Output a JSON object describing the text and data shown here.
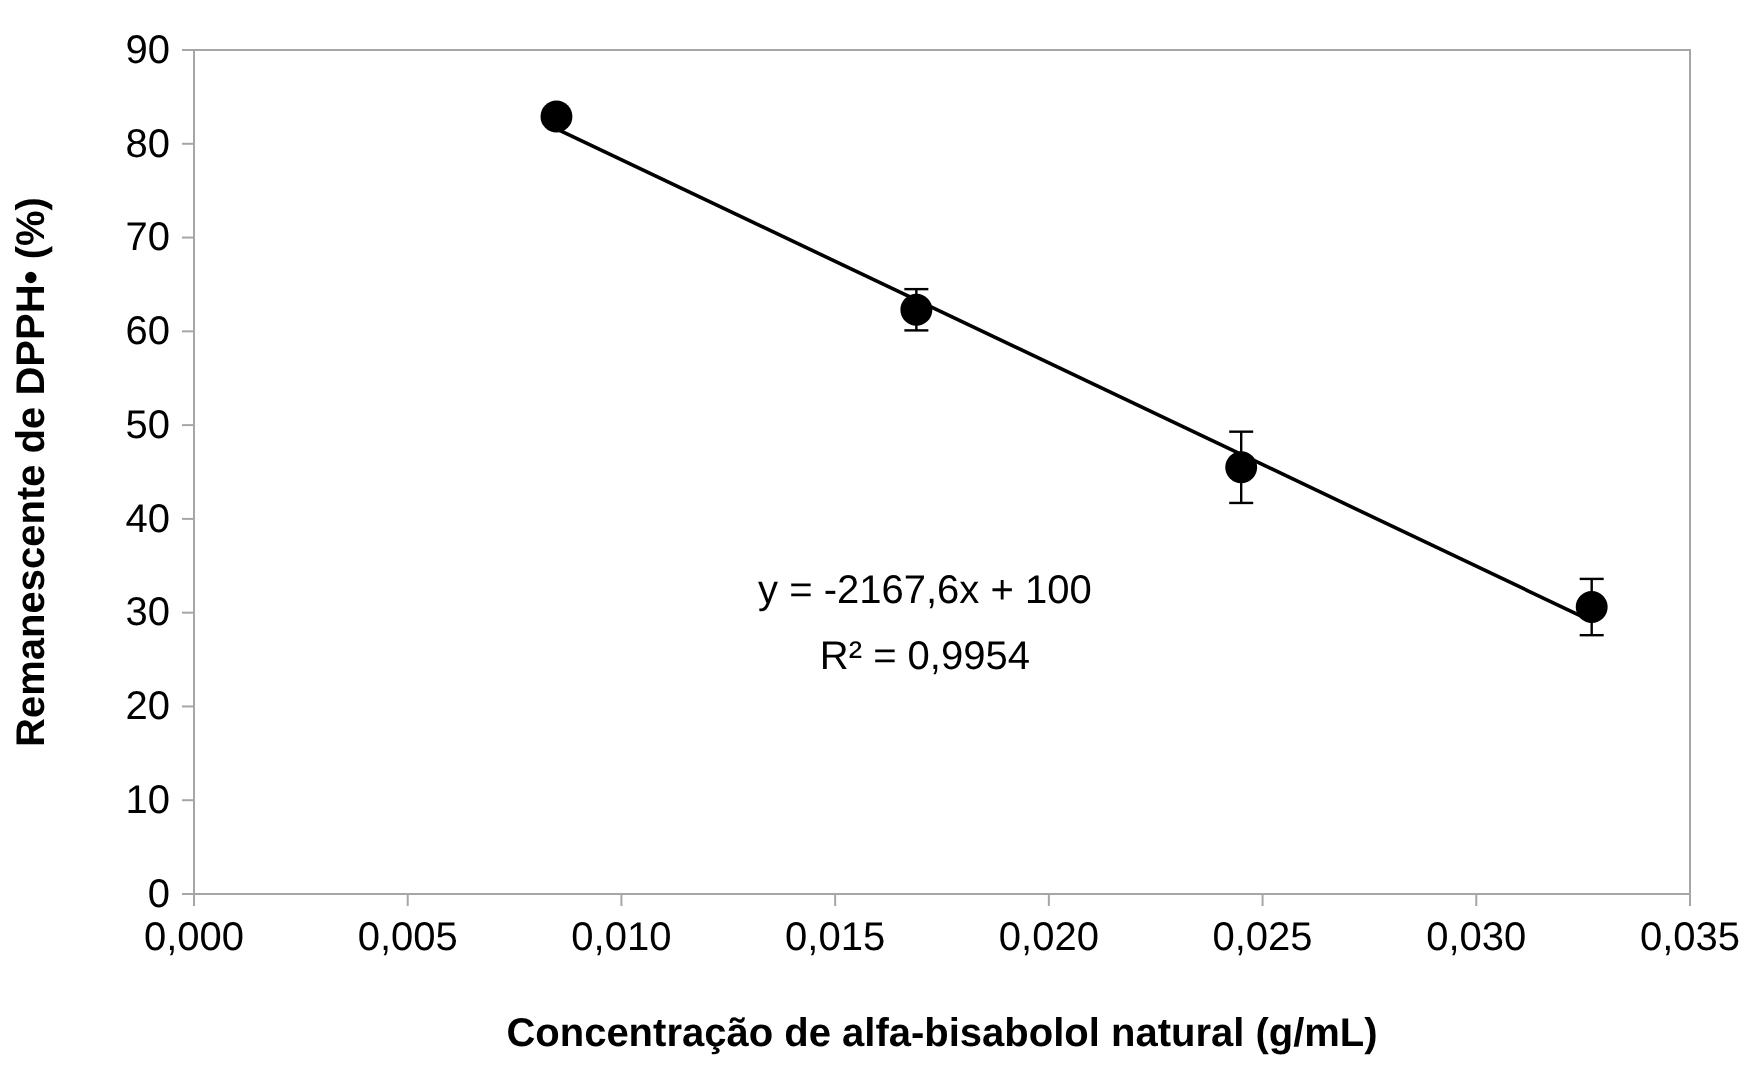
{
  "chart_data": {
    "type": "scatter",
    "xlabel": "Concentração de alfa-bisabolol natural (g/mL)",
    "ylabel": "Remanescente de DPPH• (%)",
    "xlim": [
      0,
      0.035
    ],
    "xticks": [
      {
        "value": 0,
        "label": "0,000"
      },
      {
        "value": 0.005,
        "label": "0,005"
      },
      {
        "value": 0.01,
        "label": "0,010"
      },
      {
        "value": 0.015,
        "label": "0,015"
      },
      {
        "value": 0.02,
        "label": "0,020"
      },
      {
        "value": 0.025,
        "label": "0,025"
      },
      {
        "value": 0.03,
        "label": "0,030"
      },
      {
        "value": 0.035,
        "label": "0,035"
      }
    ],
    "ylim": [
      0,
      90
    ],
    "yticks": [
      0,
      10,
      20,
      30,
      40,
      50,
      60,
      70,
      80,
      90
    ],
    "grid": false,
    "series": [
      {
        "type": "line",
        "color": "#000000",
        "x": [
          0.00848,
          0.0327
        ],
        "values": [
          81.6,
          29.1
        ],
        "line_style": "solid"
      },
      {
        "marker": "circle",
        "color": "#000000",
        "x": [
          0.00848,
          0.0169,
          0.0245,
          0.0327
        ],
        "values": [
          82.9,
          62.3,
          45.5,
          30.6
        ],
        "errors": [
          0.5,
          2.2,
          3.8,
          3.0
        ]
      }
    ],
    "annotations": [
      "y = -2167,6x + 100",
      "R² = 0,9954"
    ]
  }
}
